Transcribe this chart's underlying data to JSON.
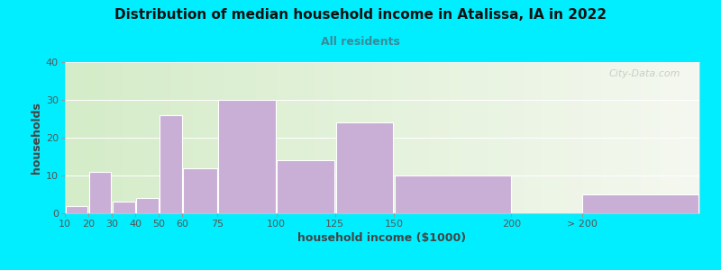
{
  "title": "Distribution of median household income in Atalissa, IA in 2022",
  "subtitle": "All residents",
  "xlabel": "household income ($1000)",
  "ylabel": "households",
  "bar_color": "#c9aed6",
  "background_outer": "#00eeff",
  "background_left": "#d4ecc8",
  "background_right": "#f2f5ee",
  "ylim": [
    0,
    40
  ],
  "yticks": [
    0,
    10,
    20,
    30,
    40
  ],
  "bar_lefts": [
    10,
    20,
    30,
    40,
    50,
    60,
    75,
    100,
    125,
    150,
    200,
    230
  ],
  "bar_widths": [
    10,
    10,
    10,
    10,
    10,
    15,
    25,
    25,
    25,
    50,
    0,
    50
  ],
  "values": [
    2,
    11,
    3,
    4,
    26,
    12,
    30,
    14,
    24,
    10,
    0,
    5
  ],
  "xtick_positions": [
    10,
    20,
    30,
    40,
    50,
    60,
    75,
    100,
    125,
    150,
    200,
    230
  ],
  "xtick_labels": [
    "10",
    "20",
    "30",
    "40",
    "50",
    "60",
    "75",
    "100",
    "125",
    "150",
    "200",
    "> 200"
  ],
  "xlim": [
    10,
    280
  ],
  "watermark": "City-Data.com",
  "title_fontsize": 11,
  "subtitle_fontsize": 9,
  "label_fontsize": 9,
  "tick_fontsize": 8
}
